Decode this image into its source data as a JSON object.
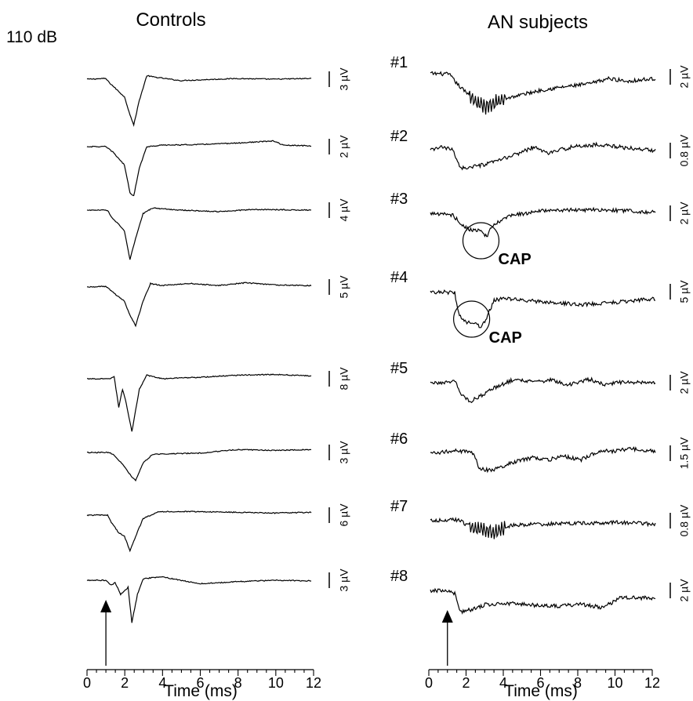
{
  "chart_data": [
    {
      "type": "line",
      "panel": "Controls",
      "title": "Controls",
      "side_label": "110 dB",
      "xlabel": "Time (ms)",
      "x_ticks": [
        0,
        2,
        4,
        6,
        8,
        10,
        12
      ],
      "xlim": [
        0,
        12
      ],
      "stimulus_onset_ms": 1.0,
      "traces": [
        {
          "id": "",
          "scale_label": "3 µV",
          "waveform": [
            [
              0,
              0
            ],
            [
              1.0,
              0.1
            ],
            [
              1.2,
              -0.5
            ],
            [
              1.6,
              -1.5
            ],
            [
              2.0,
              -2.5
            ],
            [
              2.3,
              -5.0
            ],
            [
              2.5,
              -6.5
            ],
            [
              2.8,
              -3.0
            ],
            [
              3.2,
              0.5
            ],
            [
              3.6,
              0.3
            ],
            [
              5,
              -0.2
            ],
            [
              6,
              -0.1
            ],
            [
              8,
              0.1
            ],
            [
              10,
              0.0
            ],
            [
              12,
              0.1
            ]
          ]
        },
        {
          "id": "",
          "scale_label": "2 µV",
          "waveform": [
            [
              0,
              0
            ],
            [
              1.0,
              0
            ],
            [
              1.4,
              -0.8
            ],
            [
              1.8,
              -2.0
            ],
            [
              2.0,
              -2.6
            ],
            [
              2.3,
              -6.5
            ],
            [
              2.5,
              -7.0
            ],
            [
              2.8,
              -3.0
            ],
            [
              3.2,
              0.0
            ],
            [
              4,
              0.2
            ],
            [
              6,
              0.3
            ],
            [
              8,
              0.5
            ],
            [
              10,
              0.8
            ],
            [
              10.5,
              0.2
            ],
            [
              12,
              0.1
            ]
          ]
        },
        {
          "id": "",
          "scale_label": "4 µV",
          "waveform": [
            [
              0,
              0
            ],
            [
              1.1,
              0
            ],
            [
              1.3,
              -1.0
            ],
            [
              1.7,
              -2.0
            ],
            [
              2.0,
              -3.0
            ],
            [
              2.3,
              -7.0
            ],
            [
              2.6,
              -4.0
            ],
            [
              3.0,
              -0.5
            ],
            [
              3.5,
              0.3
            ],
            [
              5,
              0.0
            ],
            [
              7,
              -0.2
            ],
            [
              9,
              0.1
            ],
            [
              12,
              0.0
            ]
          ]
        },
        {
          "id": "",
          "scale_label": "5 µV",
          "waveform": [
            [
              0,
              0
            ],
            [
              1.0,
              0.1
            ],
            [
              1.5,
              -1.0
            ],
            [
              2.0,
              -2.0
            ],
            [
              2.3,
              -4.0
            ],
            [
              2.6,
              -5.5
            ],
            [
              3.0,
              -2.0
            ],
            [
              3.4,
              0.5
            ],
            [
              4,
              0.2
            ],
            [
              5.5,
              0.5
            ],
            [
              7,
              0.2
            ],
            [
              8.5,
              0.6
            ],
            [
              10,
              0.3
            ],
            [
              12,
              0.2
            ]
          ]
        },
        {
          "id": "",
          "scale_label": "8 µV",
          "waveform": [
            [
              0,
              0
            ],
            [
              1.2,
              0
            ],
            [
              1.45,
              0.3
            ],
            [
              1.7,
              -4.0
            ],
            [
              1.9,
              -1.5
            ],
            [
              2.1,
              -3.5
            ],
            [
              2.4,
              -7.5
            ],
            [
              2.8,
              -1.5
            ],
            [
              3.2,
              0.5
            ],
            [
              4,
              0.0
            ],
            [
              6,
              0.2
            ],
            [
              8,
              0.5
            ],
            [
              10,
              0.6
            ],
            [
              12,
              0.4
            ]
          ]
        },
        {
          "id": "",
          "scale_label": "3 µV",
          "waveform": [
            [
              0,
              0
            ],
            [
              1.2,
              0.0
            ],
            [
              1.5,
              -0.5
            ],
            [
              2.0,
              -2.0
            ],
            [
              2.4,
              -3.5
            ],
            [
              2.6,
              -4.0
            ],
            [
              3.0,
              -1.5
            ],
            [
              3.5,
              -0.3
            ],
            [
              4,
              -0.2
            ],
            [
              6,
              -0.1
            ],
            [
              8,
              0.4
            ],
            [
              10,
              0.3
            ],
            [
              12,
              0.4
            ]
          ]
        },
        {
          "id": "",
          "scale_label": "6 µV",
          "waveform": [
            [
              0,
              0
            ],
            [
              1.1,
              0
            ],
            [
              1.3,
              -1.0
            ],
            [
              1.7,
              -2.5
            ],
            [
              2.0,
              -3.0
            ],
            [
              2.3,
              -5.0
            ],
            [
              2.6,
              -3.0
            ],
            [
              3.0,
              -0.5
            ],
            [
              3.8,
              0.5
            ],
            [
              6,
              0.5
            ],
            [
              8,
              0.4
            ],
            [
              10,
              0.3
            ],
            [
              12,
              0.4
            ]
          ]
        },
        {
          "id": "",
          "scale_label": "3 µV",
          "waveform": [
            [
              0,
              0
            ],
            [
              1.0,
              0.0
            ],
            [
              1.3,
              -0.7
            ],
            [
              1.5,
              -0.3
            ],
            [
              1.8,
              -2.0
            ],
            [
              2.2,
              -1.0
            ],
            [
              2.4,
              -6.0
            ],
            [
              2.7,
              -2.0
            ],
            [
              3.0,
              0.2
            ],
            [
              4,
              0.5
            ],
            [
              5,
              0.0
            ],
            [
              6,
              -0.5
            ],
            [
              8,
              -0.2
            ],
            [
              10,
              0.0
            ],
            [
              12,
              -0.1
            ]
          ]
        }
      ]
    },
    {
      "type": "line",
      "panel": "AN subjects",
      "title": "AN subjects",
      "xlabel": "Time (ms)",
      "x_ticks": [
        0,
        2,
        4,
        6,
        8,
        10,
        12
      ],
      "xlim": [
        0,
        12
      ],
      "stimulus_onset_ms": 1.0,
      "annotations": [
        {
          "trace": "#3",
          "text": "CAP",
          "x_ms": 2.8
        },
        {
          "trace": "#4",
          "text": "CAP",
          "x_ms": 2.3
        }
      ],
      "traces": [
        {
          "id": "#1",
          "scale_label": "2 µV",
          "waveform": [
            [
              0,
              0.4
            ],
            [
              1.0,
              0.3
            ],
            [
              1.5,
              -1.0
            ],
            [
              2.0,
              -2.0
            ],
            [
              2.5,
              -3.0
            ],
            [
              3.0,
              -3.5
            ],
            [
              4.0,
              -2.5
            ],
            [
              5.0,
              -2.0
            ],
            [
              6.0,
              -1.5
            ],
            [
              7.0,
              -1.2
            ],
            [
              8.5,
              -0.8
            ],
            [
              9.5,
              -0.2
            ],
            [
              10.5,
              -0.5
            ],
            [
              12,
              -0.2
            ]
          ]
        },
        {
          "id": "#2",
          "scale_label": "0.8 µV",
          "waveform": [
            [
              0,
              0
            ],
            [
              0.5,
              0.4
            ],
            [
              1.2,
              0.1
            ],
            [
              1.6,
              -2.0
            ],
            [
              2.0,
              -2.0
            ],
            [
              3.0,
              -1.6
            ],
            [
              4.5,
              -0.5
            ],
            [
              5.5,
              0.4
            ],
            [
              6.3,
              -0.3
            ],
            [
              7.5,
              0.4
            ],
            [
              9,
              0.7
            ],
            [
              10.5,
              0.3
            ],
            [
              12,
              0.0
            ]
          ]
        },
        {
          "id": "#3",
          "scale_label": "2 µV",
          "waveform": [
            [
              0,
              0
            ],
            [
              1.2,
              -0.2
            ],
            [
              1.8,
              -1.6
            ],
            [
              2.3,
              -2.0
            ],
            [
              2.7,
              -1.9
            ],
            [
              3.0,
              -2.8
            ],
            [
              3.3,
              -1.5
            ],
            [
              4.2,
              -0.3
            ],
            [
              6,
              0.3
            ],
            [
              8.5,
              0.4
            ],
            [
              10.5,
              0.3
            ],
            [
              12,
              0.1
            ]
          ]
        },
        {
          "id": "#4",
          "scale_label": "5 µV",
          "waveform": [
            [
              0,
              0
            ],
            [
              1.3,
              -0.1
            ],
            [
              1.5,
              -2.5
            ],
            [
              1.8,
              -3.5
            ],
            [
              2.3,
              -3.5
            ],
            [
              2.7,
              -4.2
            ],
            [
              3.0,
              -3.0
            ],
            [
              3.4,
              -1.0
            ],
            [
              4,
              -0.8
            ],
            [
              6,
              -1.2
            ],
            [
              8,
              -1.5
            ],
            [
              10,
              -1.2
            ],
            [
              12,
              -0.8
            ]
          ]
        },
        {
          "id": "#5",
          "scale_label": "2 µV",
          "waveform": [
            [
              0,
              0
            ],
            [
              1.3,
              0.1
            ],
            [
              1.7,
              -1.5
            ],
            [
              2.1,
              -2.2
            ],
            [
              2.7,
              -1.5
            ],
            [
              3.5,
              -0.5
            ],
            [
              4.5,
              0.4
            ],
            [
              5.5,
              0.1
            ],
            [
              6.5,
              0.3
            ],
            [
              7.3,
              -0.3
            ],
            [
              8.5,
              0.4
            ],
            [
              9.3,
              -0.2
            ],
            [
              10.5,
              0.1
            ],
            [
              12,
              -0.1
            ]
          ]
        },
        {
          "id": "#6",
          "scale_label": "1.5 µV",
          "waveform": [
            [
              0,
              0
            ],
            [
              1.5,
              0.3
            ],
            [
              2.3,
              0.0
            ],
            [
              2.6,
              -1.8
            ],
            [
              3.2,
              -2.0
            ],
            [
              4.5,
              -1.0
            ],
            [
              5.5,
              -0.5
            ],
            [
              6.3,
              -0.8
            ],
            [
              7.0,
              -0.3
            ],
            [
              8.0,
              -0.8
            ],
            [
              9.0,
              0.3
            ],
            [
              9.7,
              0.2
            ],
            [
              10.7,
              0.5
            ],
            [
              12,
              0.2
            ]
          ]
        },
        {
          "id": "#7",
          "scale_label": "0.8 µV",
          "waveform": [
            [
              0,
              0
            ],
            [
              1.5,
              0.1
            ],
            [
              2.2,
              -0.8
            ],
            [
              2.8,
              -1.0
            ],
            [
              3.3,
              -1.4
            ],
            [
              4.3,
              -0.5
            ],
            [
              6,
              -0.4
            ],
            [
              8,
              -0.3
            ],
            [
              10,
              -0.2
            ],
            [
              12,
              -0.4
            ]
          ]
        },
        {
          "id": "#8",
          "scale_label": "2 µV",
          "waveform": [
            [
              0,
              0
            ],
            [
              1.0,
              0
            ],
            [
              1.3,
              -0.4
            ],
            [
              1.6,
              -2.5
            ],
            [
              2.2,
              -2.2
            ],
            [
              3.0,
              -1.6
            ],
            [
              4.5,
              -1.5
            ],
            [
              6,
              -1.8
            ],
            [
              7,
              -1.8
            ],
            [
              8,
              -1.6
            ],
            [
              9.2,
              -2.0
            ],
            [
              10.2,
              -0.8
            ],
            [
              12,
              -0.9
            ]
          ]
        }
      ]
    }
  ]
}
